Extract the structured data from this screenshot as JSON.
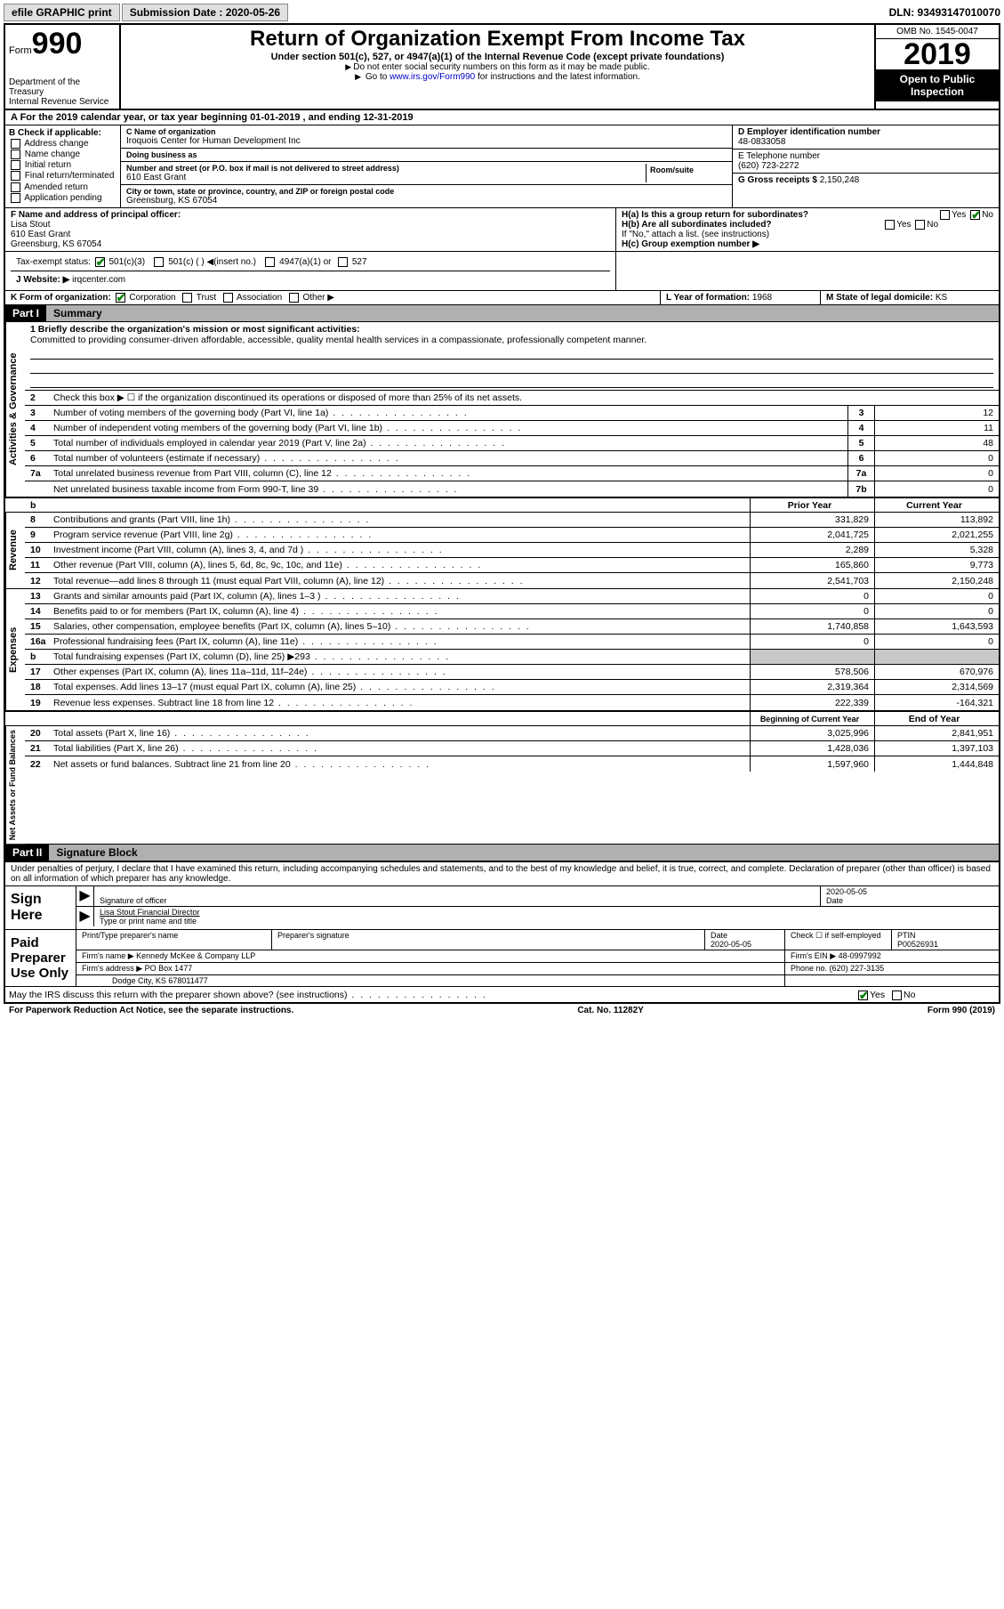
{
  "topbar": {
    "efile": "efile GRAPHIC print",
    "submission_label": "Submission Date : 2020-05-26",
    "dln": "DLN: 93493147010070"
  },
  "header": {
    "form_word": "Form",
    "form_num": "990",
    "dept": "Department of the Treasury\nInternal Revenue Service",
    "title": "Return of Organization Exempt From Income Tax",
    "subtitle": "Under section 501(c), 527, or 4947(a)(1) of the Internal Revenue Code (except private foundations)",
    "note1": "Do not enter social security numbers on this form as it may be made public.",
    "note2_pre": "Go to ",
    "note2_link": "www.irs.gov/Form990",
    "note2_post": " for instructions and the latest information.",
    "omb": "OMB No. 1545-0047",
    "year": "2019",
    "inspection": "Open to Public Inspection"
  },
  "row_a": "A For the 2019 calendar year, or tax year beginning 01-01-2019    , and ending 12-31-2019",
  "col_b": {
    "title": "B Check if applicable:",
    "opts": [
      "Address change",
      "Name change",
      "Initial return",
      "Final return/terminated",
      "Amended return",
      "Application pending"
    ]
  },
  "org": {
    "c_label": "C Name of organization",
    "name": "Iroquois Center for Human Development Inc",
    "dba_label": "Doing business as",
    "dba": "",
    "street_label": "Number and street (or P.O. box if mail is not delivered to street address)",
    "room_label": "Room/suite",
    "street": "610 East Grant",
    "city_label": "City or town, state or province, country, and ZIP or foreign postal code",
    "city": "Greensburg, KS  67054"
  },
  "col_d": {
    "label": "D Employer identification number",
    "value": "48-0833058"
  },
  "col_e": {
    "label": "E Telephone number",
    "value": "(620) 723-2272"
  },
  "col_g": {
    "label": "G Gross receipts $",
    "value": "2,150,248"
  },
  "col_f": {
    "label": "F  Name and address of principal officer:",
    "name": "Lisa Stout",
    "addr1": "610 East Grant",
    "addr2": "Greensburg, KS  67054"
  },
  "col_h": {
    "a": "H(a)  Is this a group return for subordinates?",
    "b": "H(b)  Are all subordinates included?",
    "b_note": "If \"No,\" attach a list. (see instructions)",
    "c": "H(c)  Group exemption number ▶",
    "yes": "Yes",
    "no": "No"
  },
  "tax_status": {
    "label": "Tax-exempt status:",
    "opts": [
      "501(c)(3)",
      "501(c) (  ) ◀(insert no.)",
      "4947(a)(1) or",
      "527"
    ]
  },
  "website": {
    "label": "J   Website: ▶",
    "value": "irqcenter.com"
  },
  "row_k": {
    "k": "K Form of organization:",
    "opts": [
      "Corporation",
      "Trust",
      "Association",
      "Other ▶"
    ],
    "l_label": "L Year of formation:",
    "l_val": "1968",
    "m_label": "M State of legal domicile:",
    "m_val": "KS"
  },
  "part1": {
    "hdr": "Part I",
    "title": "Summary",
    "line1_label": "1  Briefly describe the organization's mission or most significant activities:",
    "mission": "Committed to providing consumer-driven affordable, accessible, quality mental health services in a compassionate, professionally competent manner.",
    "line2": "Check this box ▶ ☐  if the organization discontinued its operations or disposed of more than 25% of its net assets.",
    "governance": [
      {
        "n": "3",
        "t": "Number of voting members of the governing body (Part VI, line 1a)",
        "b": "3",
        "v": "12"
      },
      {
        "n": "4",
        "t": "Number of independent voting members of the governing body (Part VI, line 1b)",
        "b": "4",
        "v": "11"
      },
      {
        "n": "5",
        "t": "Total number of individuals employed in calendar year 2019 (Part V, line 2a)",
        "b": "5",
        "v": "48"
      },
      {
        "n": "6",
        "t": "Total number of volunteers (estimate if necessary)",
        "b": "6",
        "v": "0"
      },
      {
        "n": "7a",
        "t": "Total unrelated business revenue from Part VIII, column (C), line 12",
        "b": "7a",
        "v": "0"
      },
      {
        "n": "",
        "t": "Net unrelated business taxable income from Form 990-T, line 39",
        "b": "7b",
        "v": "0"
      }
    ],
    "col_prior": "Prior Year",
    "col_current": "Current Year",
    "revenue": [
      {
        "n": "8",
        "t": "Contributions and grants (Part VIII, line 1h)",
        "p": "331,829",
        "c": "113,892"
      },
      {
        "n": "9",
        "t": "Program service revenue (Part VIII, line 2g)",
        "p": "2,041,725",
        "c": "2,021,255"
      },
      {
        "n": "10",
        "t": "Investment income (Part VIII, column (A), lines 3, 4, and 7d )",
        "p": "2,289",
        "c": "5,328"
      },
      {
        "n": "11",
        "t": "Other revenue (Part VIII, column (A), lines 5, 6d, 8c, 9c, 10c, and 11e)",
        "p": "165,860",
        "c": "9,773"
      },
      {
        "n": "12",
        "t": "Total revenue—add lines 8 through 11 (must equal Part VIII, column (A), line 12)",
        "p": "2,541,703",
        "c": "2,150,248"
      }
    ],
    "expenses": [
      {
        "n": "13",
        "t": "Grants and similar amounts paid (Part IX, column (A), lines 1–3 )",
        "p": "0",
        "c": "0"
      },
      {
        "n": "14",
        "t": "Benefits paid to or for members (Part IX, column (A), line 4)",
        "p": "0",
        "c": "0"
      },
      {
        "n": "15",
        "t": "Salaries, other compensation, employee benefits (Part IX, column (A), lines 5–10)",
        "p": "1,740,858",
        "c": "1,643,593"
      },
      {
        "n": "16a",
        "t": "Professional fundraising fees (Part IX, column (A), line 11e)",
        "p": "0",
        "c": "0"
      },
      {
        "n": "b",
        "t": "Total fundraising expenses (Part IX, column (D), line 25) ▶293",
        "p": "",
        "c": "",
        "shade": true
      },
      {
        "n": "17",
        "t": "Other expenses (Part IX, column (A), lines 11a–11d, 11f–24e)",
        "p": "578,506",
        "c": "670,976"
      },
      {
        "n": "18",
        "t": "Total expenses. Add lines 13–17 (must equal Part IX, column (A), line 25)",
        "p": "2,319,364",
        "c": "2,314,569"
      },
      {
        "n": "19",
        "t": "Revenue less expenses. Subtract line 18 from line 12",
        "p": "222,339",
        "c": "-164,321"
      }
    ],
    "col_begin": "Beginning of Current Year",
    "col_end": "End of Year",
    "netassets": [
      {
        "n": "20",
        "t": "Total assets (Part X, line 16)",
        "p": "3,025,996",
        "c": "2,841,951"
      },
      {
        "n": "21",
        "t": "Total liabilities (Part X, line 26)",
        "p": "1,428,036",
        "c": "1,397,103"
      },
      {
        "n": "22",
        "t": "Net assets or fund balances. Subtract line 21 from line 20",
        "p": "1,597,960",
        "c": "1,444,848"
      }
    ],
    "vlabels": {
      "gov": "Activities & Governance",
      "rev": "Revenue",
      "exp": "Expenses",
      "net": "Net Assets or Fund Balances"
    }
  },
  "part2": {
    "hdr": "Part II",
    "title": "Signature Block",
    "decl": "Under penalties of perjury, I declare that I have examined this return, including accompanying schedules and statements, and to the best of my knowledge and belief, it is true, correct, and complete. Declaration of preparer (other than officer) is based on all information of which preparer has any knowledge.",
    "sign_here": "Sign Here",
    "sig_officer": "Signature of officer",
    "date1": "2020-05-05",
    "date_lbl": "Date",
    "officer_name": "Lisa Stout Financial Director",
    "type_name": "Type or print name and title",
    "paid": "Paid Preparer Use Only",
    "prep_name_lbl": "Print/Type preparer's name",
    "prep_sig_lbl": "Preparer's signature",
    "date2": "2020-05-05",
    "check_self": "Check ☐ if self-employed",
    "ptin_lbl": "PTIN",
    "ptin": "P00526931",
    "firm_name_lbl": "Firm's name    ▶",
    "firm_name": "Kennedy McKee & Company LLP",
    "firm_ein_lbl": "Firm's EIN ▶",
    "firm_ein": "48-0997992",
    "firm_addr_lbl": "Firm's address ▶",
    "firm_addr1": "PO Box 1477",
    "firm_addr2": "Dodge City, KS  678011477",
    "phone_lbl": "Phone no.",
    "phone": "(620) 227-3135",
    "discuss": "May the IRS discuss this return with the preparer shown above? (see instructions)",
    "yes": "Yes",
    "no": "No"
  },
  "footer": {
    "left": "For Paperwork Reduction Act Notice, see the separate instructions.",
    "mid": "Cat. No. 11282Y",
    "right": "Form 990 (2019)"
  }
}
